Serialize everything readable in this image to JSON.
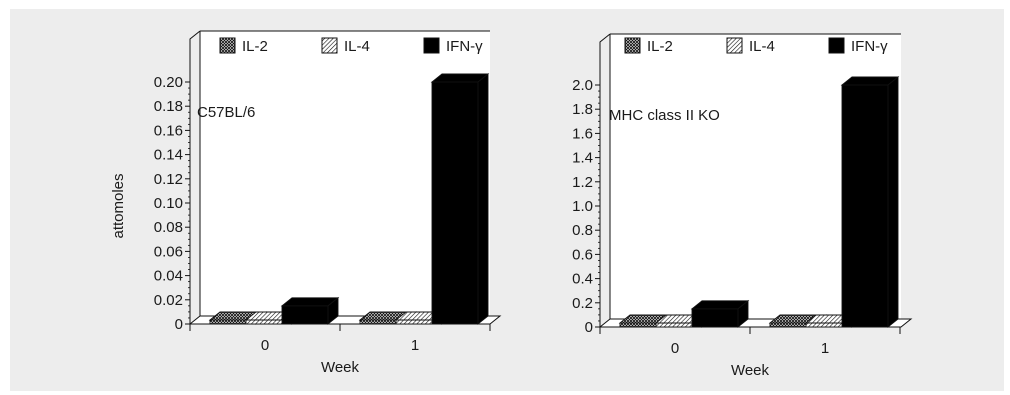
{
  "legend": [
    {
      "label": "IL-2",
      "pattern": "crosshatch"
    },
    {
      "label": "IL-4",
      "pattern": "diagonal"
    },
    {
      "label": "IFN-γ",
      "pattern": "solid"
    }
  ],
  "chart_data": [
    {
      "type": "bar",
      "annotation": "C57BL/6",
      "xlabel": "Week",
      "ylabel": "attomoles",
      "categories": [
        "0",
        "1"
      ],
      "ylim": [
        0,
        0.2
      ],
      "yticks": [
        "0.20",
        "0.18",
        "0.16",
        "0.14",
        "0.12",
        "0.10",
        "0.08",
        "0.06",
        "0.04",
        "0.02",
        "0"
      ],
      "series": [
        {
          "name": "IL-2",
          "values": [
            0.003,
            0.003
          ]
        },
        {
          "name": "IL-4",
          "values": [
            0.001,
            0.001
          ]
        },
        {
          "name": "IFN-γ",
          "values": [
            0.015,
            0.2
          ]
        }
      ],
      "legend_position": "top",
      "grid": false
    },
    {
      "type": "bar",
      "annotation": "MHC class II KO",
      "xlabel": "Week",
      "ylabel": "",
      "categories": [
        "0",
        "1"
      ],
      "ylim": [
        0,
        2.0
      ],
      "yticks": [
        "2.0",
        "1.8",
        "1.6",
        "1.4",
        "1.2",
        "1.0",
        "0.8",
        "0.6",
        "0.4",
        "0.2",
        "0"
      ],
      "series": [
        {
          "name": "IL-2",
          "values": [
            0.03,
            0.03
          ]
        },
        {
          "name": "IL-4",
          "values": [
            0.01,
            0.01
          ]
        },
        {
          "name": "IFN-γ",
          "values": [
            0.15,
            2.0
          ]
        }
      ],
      "legend_position": "top",
      "grid": false
    }
  ]
}
